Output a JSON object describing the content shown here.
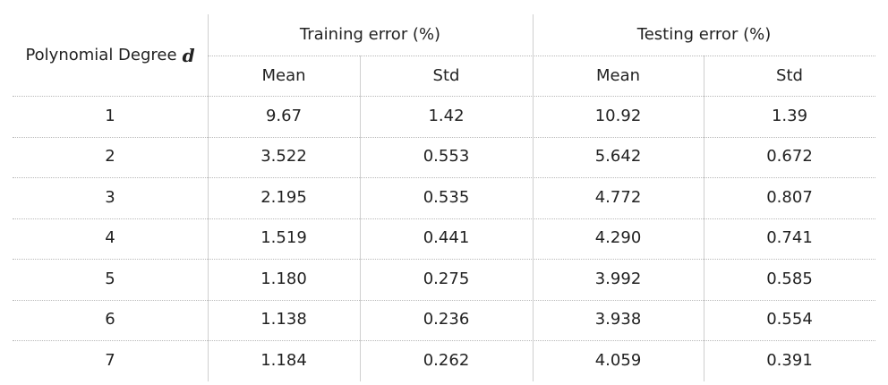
{
  "table": {
    "header": {
      "degree_label": "Polynomial Degree",
      "degree_var": "d",
      "train_group": "Training error (%)",
      "test_group": "Testing error (%)",
      "train_mean": "Mean",
      "train_std": "Std",
      "test_mean": "Mean",
      "test_std": "Std"
    },
    "rows": [
      {
        "degree": "1",
        "train_mean": "9.67",
        "train_std": "1.42",
        "test_mean": "10.92",
        "test_std": "1.39"
      },
      {
        "degree": "2",
        "train_mean": "3.522",
        "train_std": "0.553",
        "test_mean": "5.642",
        "test_std": "0.672"
      },
      {
        "degree": "3",
        "train_mean": "2.195",
        "train_std": "0.535",
        "test_mean": "4.772",
        "test_std": "0.807"
      },
      {
        "degree": "4",
        "train_mean": "1.519",
        "train_std": "0.441",
        "test_mean": "4.290",
        "test_std": "0.741"
      },
      {
        "degree": "5",
        "train_mean": "1.180",
        "train_std": "0.275",
        "test_mean": "3.992",
        "test_std": "0.585"
      },
      {
        "degree": "6",
        "train_mean": "1.138",
        "train_std": "0.236",
        "test_mean": "3.938",
        "test_std": "0.554"
      },
      {
        "degree": "7",
        "train_mean": "1.184",
        "train_std": "0.262",
        "test_mean": "4.059",
        "test_std": "0.391"
      }
    ]
  }
}
